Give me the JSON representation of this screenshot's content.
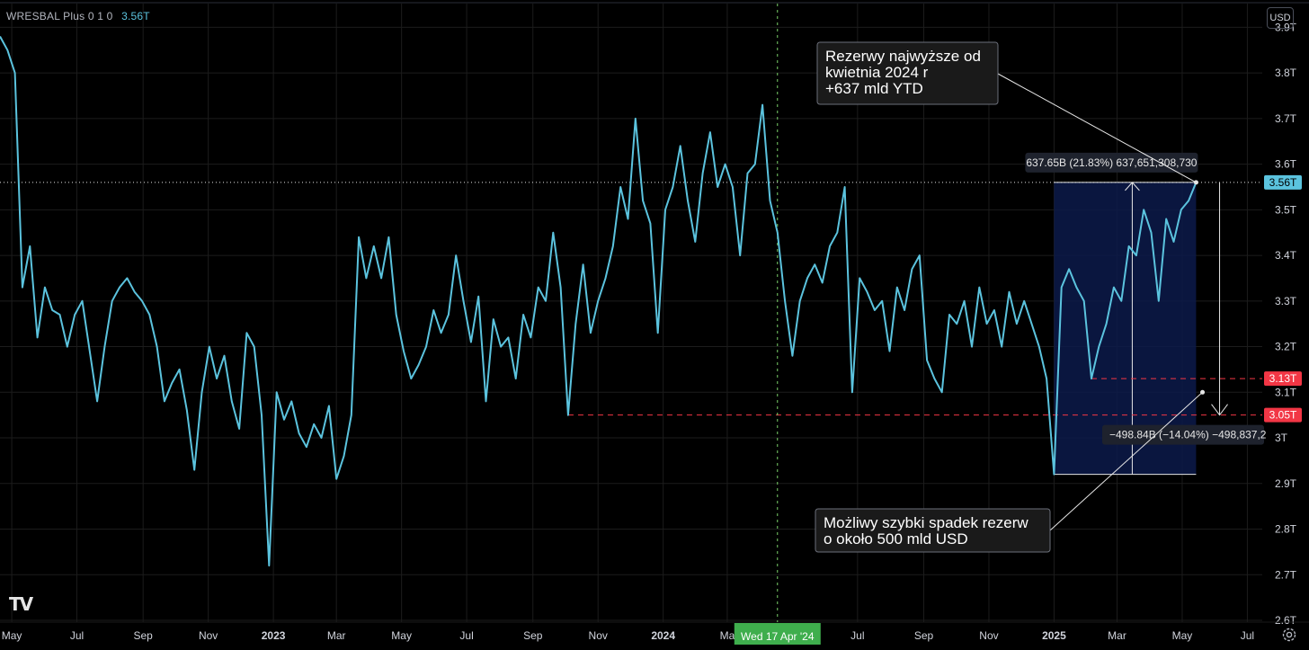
{
  "header": {
    "symbol": "WRESBAL Plus 0 1 0",
    "last_value": "3.56T"
  },
  "currency_button": "USD",
  "logo_text": "TV",
  "colors": {
    "background": "#000000",
    "line": "#5bc3de",
    "grid": "#1c1c1c",
    "axis_text": "#d1d4dc",
    "last_price_badge": "#5bc3de",
    "red_level": "#f23645",
    "crosshair": "#7bd36a",
    "measure_box": "#0c1a4a",
    "date_badge": "#3fae4d"
  },
  "chart_data": {
    "type": "line",
    "title": "",
    "xlabel": "",
    "ylabel": "",
    "ylim": [
      2.6,
      3.95
    ],
    "x_range": [
      "2022-04-20",
      "2025-07-20"
    ],
    "grid": true,
    "y_ticks": [
      "3.9T",
      "3.8T",
      "3.7T",
      "3.6T",
      "3.5T",
      "3.4T",
      "3.3T",
      "3.2T",
      "3.1T",
      "3T",
      "2.9T",
      "2.8T",
      "2.7T",
      "2.6T"
    ],
    "y_tick_values": [
      3.9,
      3.8,
      3.7,
      3.6,
      3.5,
      3.4,
      3.3,
      3.2,
      3.1,
      3.0,
      2.9,
      2.8,
      2.7,
      2.6
    ],
    "x_ticks": [
      {
        "label": "May",
        "date": "2022-05-01",
        "bold": false
      },
      {
        "label": "Jul",
        "date": "2022-07-01",
        "bold": false
      },
      {
        "label": "Sep",
        "date": "2022-09-01",
        "bold": false
      },
      {
        "label": "Nov",
        "date": "2022-11-01",
        "bold": false
      },
      {
        "label": "2023",
        "date": "2023-01-01",
        "bold": true
      },
      {
        "label": "Mar",
        "date": "2023-03-01",
        "bold": false
      },
      {
        "label": "May",
        "date": "2023-05-01",
        "bold": false
      },
      {
        "label": "Jul",
        "date": "2023-07-01",
        "bold": false
      },
      {
        "label": "Sep",
        "date": "2023-09-01",
        "bold": false
      },
      {
        "label": "Nov",
        "date": "2023-11-01",
        "bold": false
      },
      {
        "label": "2024",
        "date": "2024-01-01",
        "bold": true
      },
      {
        "label": "Ma",
        "date": "2024-03-01",
        "bold": false
      },
      {
        "label": "Jul",
        "date": "2024-07-01",
        "bold": false
      },
      {
        "label": "Sep",
        "date": "2024-09-01",
        "bold": false
      },
      {
        "label": "Nov",
        "date": "2024-11-01",
        "bold": false
      },
      {
        "label": "2025",
        "date": "2025-01-01",
        "bold": true
      },
      {
        "label": "Mar",
        "date": "2025-03-01",
        "bold": false
      },
      {
        "label": "May",
        "date": "2025-05-01",
        "bold": false
      },
      {
        "label": "Jul",
        "date": "2025-07-01",
        "bold": false
      }
    ],
    "series": [
      {
        "values": [
          [
            "2022-04-20",
            3.88
          ],
          [
            "2022-04-27",
            3.85
          ],
          [
            "2022-05-04",
            3.8
          ],
          [
            "2022-05-11",
            3.33
          ],
          [
            "2022-05-18",
            3.42
          ],
          [
            "2022-05-25",
            3.22
          ],
          [
            "2022-06-01",
            3.33
          ],
          [
            "2022-06-08",
            3.28
          ],
          [
            "2022-06-15",
            3.27
          ],
          [
            "2022-06-22",
            3.2
          ],
          [
            "2022-06-29",
            3.27
          ],
          [
            "2022-07-06",
            3.3
          ],
          [
            "2022-07-13",
            3.19
          ],
          [
            "2022-07-20",
            3.08
          ],
          [
            "2022-07-27",
            3.2
          ],
          [
            "2022-08-03",
            3.3
          ],
          [
            "2022-08-10",
            3.33
          ],
          [
            "2022-08-17",
            3.35
          ],
          [
            "2022-08-24",
            3.32
          ],
          [
            "2022-08-31",
            3.3
          ],
          [
            "2022-09-07",
            3.27
          ],
          [
            "2022-09-14",
            3.2
          ],
          [
            "2022-09-21",
            3.08
          ],
          [
            "2022-09-28",
            3.12
          ],
          [
            "2022-10-05",
            3.15
          ],
          [
            "2022-10-12",
            3.06
          ],
          [
            "2022-10-19",
            2.93
          ],
          [
            "2022-10-26",
            3.1
          ],
          [
            "2022-11-02",
            3.2
          ],
          [
            "2022-11-09",
            3.13
          ],
          [
            "2022-11-16",
            3.18
          ],
          [
            "2022-11-23",
            3.08
          ],
          [
            "2022-11-30",
            3.02
          ],
          [
            "2022-12-07",
            3.23
          ],
          [
            "2022-12-14",
            3.2
          ],
          [
            "2022-12-21",
            3.05
          ],
          [
            "2022-12-28",
            2.72
          ],
          [
            "2023-01-04",
            3.1
          ],
          [
            "2023-01-11",
            3.04
          ],
          [
            "2023-01-18",
            3.08
          ],
          [
            "2023-01-25",
            3.01
          ],
          [
            "2023-02-01",
            2.98
          ],
          [
            "2023-02-08",
            3.03
          ],
          [
            "2023-02-15",
            3.0
          ],
          [
            "2023-02-22",
            3.07
          ],
          [
            "2023-03-01",
            2.91
          ],
          [
            "2023-03-08",
            2.96
          ],
          [
            "2023-03-15",
            3.05
          ],
          [
            "2023-03-22",
            3.44
          ],
          [
            "2023-03-29",
            3.35
          ],
          [
            "2023-04-05",
            3.42
          ],
          [
            "2023-04-12",
            3.35
          ],
          [
            "2023-04-19",
            3.44
          ],
          [
            "2023-04-26",
            3.27
          ],
          [
            "2023-05-03",
            3.19
          ],
          [
            "2023-05-10",
            3.13
          ],
          [
            "2023-05-17",
            3.16
          ],
          [
            "2023-05-24",
            3.2
          ],
          [
            "2023-05-31",
            3.28
          ],
          [
            "2023-06-07",
            3.23
          ],
          [
            "2023-06-14",
            3.27
          ],
          [
            "2023-06-21",
            3.4
          ],
          [
            "2023-06-28",
            3.3
          ],
          [
            "2023-07-05",
            3.21
          ],
          [
            "2023-07-12",
            3.31
          ],
          [
            "2023-07-19",
            3.08
          ],
          [
            "2023-07-26",
            3.26
          ],
          [
            "2023-08-02",
            3.2
          ],
          [
            "2023-08-09",
            3.22
          ],
          [
            "2023-08-16",
            3.13
          ],
          [
            "2023-08-23",
            3.27
          ],
          [
            "2023-08-30",
            3.22
          ],
          [
            "2023-09-06",
            3.33
          ],
          [
            "2023-09-13",
            3.3
          ],
          [
            "2023-09-20",
            3.45
          ],
          [
            "2023-09-27",
            3.33
          ],
          [
            "2023-10-04",
            3.05
          ],
          [
            "2023-10-11",
            3.25
          ],
          [
            "2023-10-18",
            3.38
          ],
          [
            "2023-10-25",
            3.23
          ],
          [
            "2023-11-01",
            3.3
          ],
          [
            "2023-11-08",
            3.35
          ],
          [
            "2023-11-15",
            3.42
          ],
          [
            "2023-11-22",
            3.55
          ],
          [
            "2023-11-29",
            3.48
          ],
          [
            "2023-12-06",
            3.7
          ],
          [
            "2023-12-13",
            3.52
          ],
          [
            "2023-12-20",
            3.47
          ],
          [
            "2023-12-27",
            3.23
          ],
          [
            "2024-01-03",
            3.5
          ],
          [
            "2024-01-10",
            3.55
          ],
          [
            "2024-01-17",
            3.64
          ],
          [
            "2024-01-24",
            3.52
          ],
          [
            "2024-01-31",
            3.43
          ],
          [
            "2024-02-07",
            3.58
          ],
          [
            "2024-02-14",
            3.67
          ],
          [
            "2024-02-21",
            3.55
          ],
          [
            "2024-02-28",
            3.6
          ],
          [
            "2024-03-06",
            3.55
          ],
          [
            "2024-03-13",
            3.4
          ],
          [
            "2024-03-20",
            3.58
          ],
          [
            "2024-03-27",
            3.6
          ],
          [
            "2024-04-03",
            3.73
          ],
          [
            "2024-04-10",
            3.52
          ],
          [
            "2024-04-17",
            3.45
          ],
          [
            "2024-04-24",
            3.3
          ],
          [
            "2024-05-01",
            3.18
          ],
          [
            "2024-05-08",
            3.3
          ],
          [
            "2024-05-15",
            3.35
          ],
          [
            "2024-05-22",
            3.38
          ],
          [
            "2024-05-29",
            3.34
          ],
          [
            "2024-06-05",
            3.42
          ],
          [
            "2024-06-12",
            3.45
          ],
          [
            "2024-06-19",
            3.55
          ],
          [
            "2024-06-26",
            3.1
          ],
          [
            "2024-07-03",
            3.35
          ],
          [
            "2024-07-10",
            3.32
          ],
          [
            "2024-07-17",
            3.28
          ],
          [
            "2024-07-24",
            3.3
          ],
          [
            "2024-07-31",
            3.19
          ],
          [
            "2024-08-07",
            3.33
          ],
          [
            "2024-08-14",
            3.28
          ],
          [
            "2024-08-21",
            3.37
          ],
          [
            "2024-08-28",
            3.4
          ],
          [
            "2024-09-04",
            3.17
          ],
          [
            "2024-09-11",
            3.13
          ],
          [
            "2024-09-18",
            3.1
          ],
          [
            "2024-09-25",
            3.27
          ],
          [
            "2024-10-02",
            3.25
          ],
          [
            "2024-10-09",
            3.3
          ],
          [
            "2024-10-16",
            3.2
          ],
          [
            "2024-10-23",
            3.33
          ],
          [
            "2024-10-30",
            3.25
          ],
          [
            "2024-11-06",
            3.28
          ],
          [
            "2024-11-13",
            3.2
          ],
          [
            "2024-11-20",
            3.32
          ],
          [
            "2024-11-27",
            3.25
          ],
          [
            "2024-12-04",
            3.3
          ],
          [
            "2024-12-11",
            3.25
          ],
          [
            "2024-12-18",
            3.2
          ],
          [
            "2024-12-25",
            3.13
          ],
          [
            "2025-01-01",
            2.92
          ],
          [
            "2025-01-08",
            3.33
          ],
          [
            "2025-01-15",
            3.37
          ],
          [
            "2025-01-22",
            3.33
          ],
          [
            "2025-01-29",
            3.3
          ],
          [
            "2025-02-05",
            3.13
          ],
          [
            "2025-02-12",
            3.2
          ],
          [
            "2025-02-19",
            3.25
          ],
          [
            "2025-02-26",
            3.33
          ],
          [
            "2025-03-05",
            3.3
          ],
          [
            "2025-03-12",
            3.42
          ],
          [
            "2025-03-19",
            3.4
          ],
          [
            "2025-03-26",
            3.5
          ],
          [
            "2025-04-02",
            3.45
          ],
          [
            "2025-04-09",
            3.3
          ],
          [
            "2025-04-16",
            3.48
          ],
          [
            "2025-04-23",
            3.43
          ],
          [
            "2025-04-30",
            3.5
          ],
          [
            "2025-05-07",
            3.52
          ],
          [
            "2025-05-14",
            3.56
          ]
        ]
      }
    ],
    "last_price_label": "3.56T",
    "last_price_value": 3.56,
    "price_levels": [
      {
        "label": "3.13T",
        "value": 3.13,
        "from": "2025-02-05"
      },
      {
        "label": "3.05T",
        "value": 3.05,
        "from": "2023-10-04"
      }
    ],
    "crosshair": {
      "date": "2024-04-17",
      "label": "Wed 17 Apr '24"
    },
    "measure": {
      "from_date": "2025-01-01",
      "to_date": "2025-05-14",
      "low": 2.92,
      "high": 3.56,
      "label": "637.65B (21.83%) 637,651,308,730"
    },
    "projection": {
      "date": "2025-06-05",
      "from": 3.56,
      "to": 3.05,
      "label": "−498.84B (−14.04%) −498,837,2"
    },
    "annotations": [
      {
        "lines": [
          "Rezerwy najwyższe od",
          "kwietnia 2024 r",
          "+637 mld YTD"
        ],
        "target": [
          "2025-05-14",
          3.56
        ]
      },
      {
        "lines": [
          "Możliwy szybki spadek rezerw",
          "o około 500 mld USD"
        ],
        "target": [
          "2025-05-20",
          3.1
        ]
      }
    ]
  }
}
